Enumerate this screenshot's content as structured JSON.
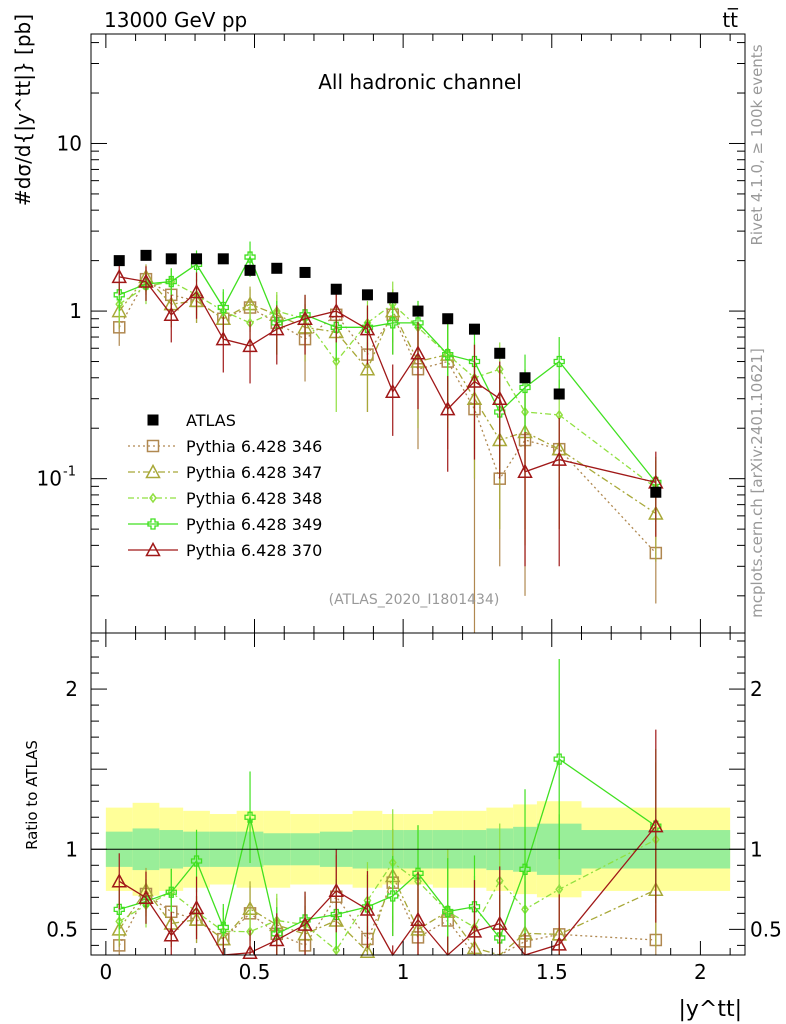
{
  "header": {
    "energy_label": "13000 GeV pp",
    "process_label": "tt̅"
  },
  "side_labels": {
    "rivet": "Rivet 4.1.0, ≥ 100k events",
    "source": "mcplots.cern.ch [arXiv:2401.10621]"
  },
  "chart_data": {
    "type": "line",
    "title": "All hadronic channel",
    "analysis_id": "(ATLAS_2020_I1801434)",
    "ylabel_top": "#dσ/d{|y^tt|} [pb]",
    "ylabel_ratio": "Ratio to ATLAS",
    "xlabel": "|y^tt|",
    "xlim": [
      -0.05,
      2.15
    ],
    "ylim": [
      0.012,
      45
    ],
    "ratio_ylim": [
      0.34,
      2.35
    ],
    "xticks": [
      0,
      0.5,
      1,
      1.5,
      2
    ],
    "xtick_labels": [
      "0",
      "0.5",
      "1",
      "1.5",
      "2"
    ],
    "yticks_main": [
      0.1,
      1,
      10
    ],
    "ytick_labels_main": [
      "10^-1",
      "1",
      "10"
    ],
    "yticks_ratio": [
      0.5,
      1,
      2
    ],
    "ytick_labels_ratio": [
      "0.5",
      "1",
      "2"
    ],
    "bin_edges": [
      0,
      0.09,
      0.18,
      0.26,
      0.35,
      0.44,
      0.53,
      0.62,
      0.72,
      0.83,
      0.93,
      1.0,
      1.1,
      1.2,
      1.28,
      1.37,
      1.45,
      1.6,
      2.1
    ],
    "x": [
      0.045,
      0.135,
      0.22,
      0.305,
      0.395,
      0.485,
      0.575,
      0.67,
      0.775,
      0.88,
      0.965,
      1.05,
      1.15,
      1.24,
      1.325,
      1.41,
      1.525,
      1.85
    ],
    "band_yellow": [
      0.26,
      0.29,
      0.26,
      0.24,
      0.22,
      0.24,
      0.24,
      0.22,
      0.22,
      0.24,
      0.22,
      0.22,
      0.24,
      0.24,
      0.26,
      0.28,
      0.3,
      0.26
    ],
    "band_green": [
      0.11,
      0.13,
      0.12,
      0.11,
      0.11,
      0.11,
      0.1,
      0.1,
      0.11,
      0.12,
      0.12,
      0.12,
      0.12,
      0.12,
      0.13,
      0.14,
      0.16,
      0.12
    ],
    "data": {
      "name": "ATLAS",
      "values": [
        2.0,
        2.15,
        2.05,
        2.05,
        2.05,
        1.75,
        1.8,
        1.7,
        1.35,
        1.25,
        1.2,
        1.0,
        0.9,
        0.78,
        0.56,
        0.4,
        0.32,
        0.083
      ]
    },
    "series": [
      {
        "name": "Pythia 6.428 346",
        "color": "#b08850",
        "marker": "square",
        "dash": "2,3",
        "values": [
          0.8,
          1.55,
          1.25,
          1.15,
          0.9,
          1.05,
          0.85,
          0.68,
          0.95,
          0.55,
          0.95,
          0.45,
          0.5,
          0.26,
          0.1,
          0.17,
          0.15,
          0.036
        ],
        "errors": [
          0.18,
          0.3,
          0.3,
          0.3,
          0.25,
          0.3,
          0.3,
          0.3,
          0.35,
          0.3,
          0.4,
          0.3,
          0.35,
          0.25,
          0.07,
          0.15,
          0.1,
          0.018
        ]
      },
      {
        "name": "Pythia 6.428 347",
        "color": "#a8a838",
        "marker": "triangle",
        "dash": "7,3,2,3",
        "values": [
          1.0,
          1.6,
          1.1,
          1.15,
          0.9,
          1.1,
          0.95,
          0.8,
          0.75,
          0.45,
          1.0,
          0.5,
          0.55,
          0.3,
          0.17,
          0.19,
          0.15,
          0.062
        ],
        "errors": [
          0.22,
          0.3,
          0.3,
          0.3,
          0.25,
          0.3,
          0.3,
          0.3,
          0.3,
          0.2,
          0.35,
          0.3,
          0.35,
          0.2,
          0.12,
          0.15,
          0.1,
          0.03
        ]
      },
      {
        "name": "Pythia 6.428 348",
        "color": "#90e040",
        "marker": "diamond",
        "dash": "6,3,2,3",
        "values": [
          1.1,
          1.4,
          1.5,
          1.25,
          1.0,
          0.85,
          1.0,
          0.9,
          0.5,
          0.85,
          1.1,
          0.8,
          0.55,
          0.4,
          0.45,
          0.25,
          0.24,
          0.088
        ],
        "errors": [
          0.25,
          0.3,
          0.3,
          0.3,
          0.3,
          0.25,
          0.3,
          0.3,
          0.25,
          0.3,
          0.4,
          0.35,
          0.35,
          0.25,
          0.2,
          0.2,
          0.15,
          0.04
        ]
      },
      {
        "name": "Pythia 6.428 349",
        "color": "#40e020",
        "marker": "cross",
        "dash": "",
        "values": [
          1.25,
          1.45,
          1.5,
          1.9,
          1.05,
          2.1,
          0.85,
          0.95,
          0.8,
          0.8,
          0.85,
          0.85,
          0.55,
          0.5,
          0.25,
          0.35,
          0.5,
          0.095
        ],
        "errors": [
          0.25,
          0.3,
          0.3,
          0.4,
          0.3,
          0.5,
          0.3,
          0.3,
          0.3,
          0.25,
          0.3,
          0.3,
          0.3,
          0.25,
          0.15,
          0.2,
          0.2,
          0.04
        ]
      },
      {
        "name": "Pythia 6.428 370",
        "color": "#a01818",
        "marker": "triangle",
        "dash": "",
        "values": [
          1.6,
          1.5,
          0.95,
          1.3,
          0.68,
          0.62,
          0.78,
          0.9,
          1.0,
          0.78,
          0.33,
          0.56,
          0.26,
          0.38,
          0.3,
          0.11,
          0.13,
          0.095
        ],
        "errors": [
          0.35,
          0.35,
          0.3,
          0.4,
          0.25,
          0.25,
          0.3,
          0.35,
          0.35,
          0.3,
          0.15,
          0.3,
          0.15,
          0.25,
          0.2,
          0.08,
          0.1,
          0.05
        ]
      }
    ]
  }
}
